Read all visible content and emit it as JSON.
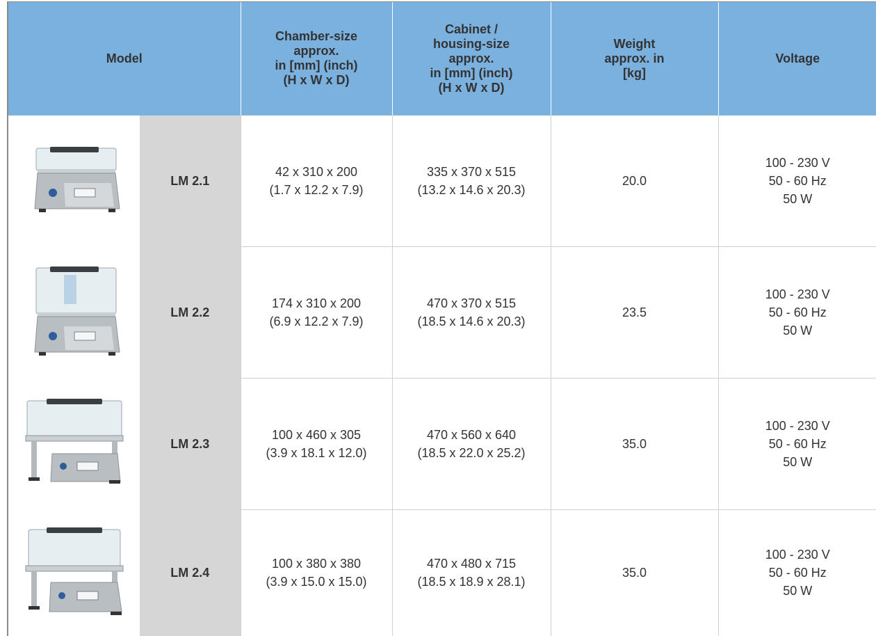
{
  "headers": {
    "model": "Model",
    "chamber": [
      "Chamber-size",
      "approx.",
      "in [mm] (inch)",
      "(H x W x D)"
    ],
    "cabinet": [
      "Cabinet /",
      "housing-size",
      "approx.",
      "in [mm] (inch)",
      "(H x W x D)"
    ],
    "weight": [
      "Weight",
      "approx. in",
      "[kg]"
    ],
    "voltage": "Voltage"
  },
  "rows": [
    {
      "icon": "tabletop-vacuum-chamber-small",
      "model": "LM 2.1",
      "chamber": [
        "42 x 310 x 200",
        "(1.7 x 12.2 x 7.9)"
      ],
      "cabinet": [
        "335 x 370 x 515",
        "(13.2 x 14.6 x 20.3)"
      ],
      "weight": "20.0",
      "voltage": [
        "100 - 230 V",
        "50 - 60 Hz",
        "50 W"
      ]
    },
    {
      "icon": "tabletop-vacuum-chamber-tall",
      "model": "LM 2.2",
      "chamber": [
        "174 x 310 x 200",
        "(6.9 x 12.2 x 7.9)"
      ],
      "cabinet": [
        "470 x 370 x 515",
        "(18.5 x 14.6 x 20.3)"
      ],
      "weight": "23.5",
      "voltage": [
        "100 - 230 V",
        "50 - 60 Hz",
        "50 W"
      ]
    },
    {
      "icon": "stand-vacuum-chamber-wide",
      "model": "LM 2.3",
      "chamber": [
        "100 x 460 x 305",
        "(3.9 x 18.1 x 12.0)"
      ],
      "cabinet": [
        "470 x 560 x 640",
        "(18.5 x 22.0 x 25.2)"
      ],
      "weight": "35.0",
      "voltage": [
        "100 - 230 V",
        "50 - 60 Hz",
        "50 W"
      ]
    },
    {
      "icon": "stand-vacuum-chamber-deep",
      "model": "LM 2.4",
      "chamber": [
        "100 x 380 x 380",
        "(3.9 x 15.0 x 15.0)"
      ],
      "cabinet": [
        "470 x 480 x 715",
        "(18.5 x 18.9 x 28.1)"
      ],
      "weight": "35.0",
      "voltage": [
        "100 - 230 V",
        "50 - 60 Hz",
        "50 W"
      ]
    }
  ]
}
